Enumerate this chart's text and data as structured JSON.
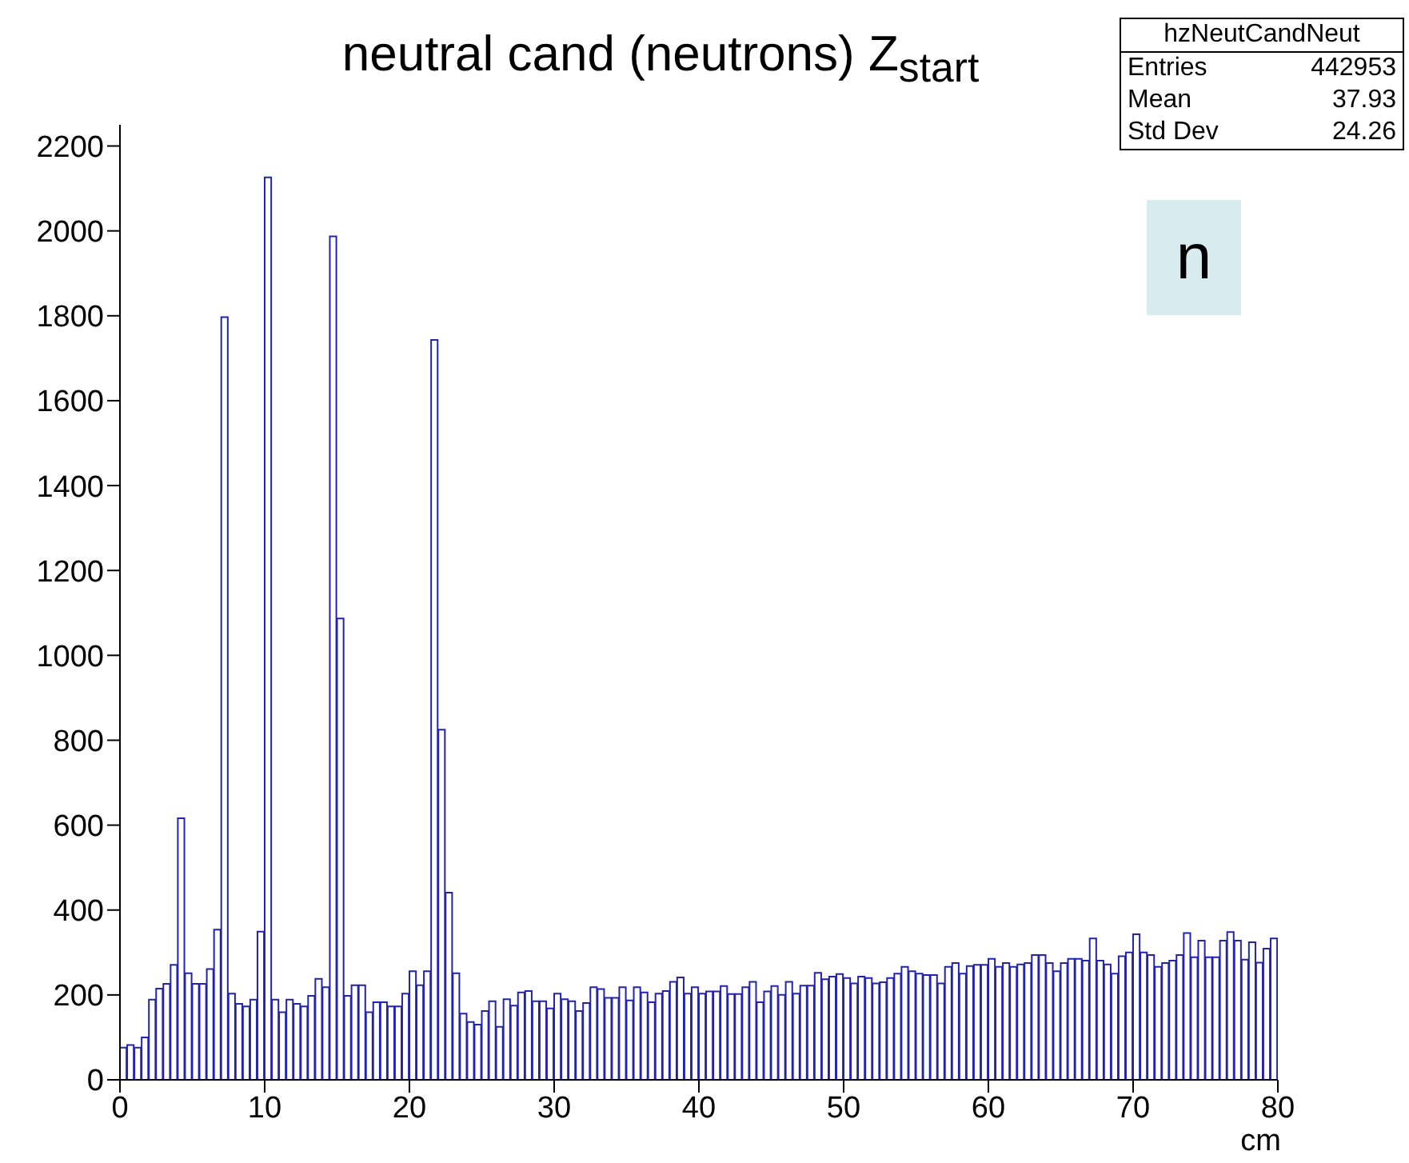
{
  "chart_data": {
    "type": "histogram",
    "title": "neutral cand (neutrons) Z$_{start}$",
    "xlabel": "cm",
    "color": "#2323b0",
    "bins": [
      0,
      0.5,
      1,
      1.5,
      2,
      2.5,
      3,
      3.5,
      4,
      4.5,
      5,
      5.5,
      6,
      6.5,
      7,
      7.5,
      8,
      8.5,
      9,
      9.5,
      10,
      10.5,
      11,
      11.5,
      12,
      12.5,
      13,
      13.5,
      14,
      14.5,
      15,
      15.5,
      16,
      16.5,
      17,
      17.5,
      18,
      18.5,
      19,
      19.5,
      20,
      20.5,
      21,
      21.5,
      22,
      22.5,
      23,
      23.5,
      24,
      24.5,
      25,
      25.5,
      26,
      26.5,
      27,
      27.5,
      28,
      28.5,
      29,
      29.5,
      30,
      30.5,
      31,
      31.5,
      32,
      32.5,
      33,
      33.5,
      34,
      34.5,
      35,
      35.5,
      36,
      36.5,
      37,
      37.5,
      38,
      38.5,
      39,
      39.5,
      40,
      40.5,
      41,
      41.5,
      42,
      42.5,
      43,
      43.5,
      44,
      44.5,
      45,
      45.5,
      46,
      46.5,
      47,
      47.5,
      48,
      48.5,
      49,
      49.5,
      50,
      50.5,
      51,
      51.5,
      52,
      52.5,
      53,
      53.5,
      54,
      54.5,
      55,
      55.5,
      56,
      56.5,
      57,
      57.5,
      58,
      58.5,
      59,
      59.5,
      60,
      60.5,
      61,
      61.5,
      62,
      62.5,
      63,
      63.5,
      64,
      64.5,
      65,
      65.5,
      66,
      66.5,
      67,
      67.5,
      68,
      68.5,
      69,
      69.5,
      70,
      70.5,
      71,
      71.5,
      72,
      72.5,
      73,
      73.5,
      74,
      74.5,
      75,
      75.5,
      76,
      76.5,
      77,
      77.5,
      78,
      78.5,
      79,
      79.5,
      80
    ],
    "values": [
      76,
      82,
      76,
      100,
      189,
      215,
      226,
      271,
      616,
      251,
      226,
      226,
      261,
      354,
      1797,
      203,
      179,
      173,
      189,
      349,
      2126,
      189,
      159,
      189,
      179,
      173,
      198,
      238,
      218,
      1987,
      1087,
      198,
      223,
      223,
      159,
      183,
      183,
      173,
      173,
      203,
      256,
      223,
      256,
      1743,
      825,
      441,
      251,
      156,
      136,
      130,
      162,
      185,
      125,
      190,
      175,
      206,
      209,
      185,
      185,
      168,
      203,
      190,
      185,
      162,
      181,
      218,
      214,
      193,
      193,
      218,
      187,
      218,
      206,
      183,
      203,
      209,
      231,
      241,
      203,
      218,
      203,
      208,
      208,
      221,
      202,
      202,
      218,
      231,
      183,
      208,
      221,
      200,
      231,
      203,
      222,
      222,
      252,
      237,
      243,
      249,
      240,
      227,
      243,
      240,
      227,
      230,
      240,
      250,
      266,
      256,
      250,
      247,
      247,
      227,
      266,
      275,
      250,
      268,
      271,
      271,
      285,
      266,
      275,
      266,
      272,
      275,
      294,
      294,
      275,
      256,
      275,
      285,
      285,
      281,
      333,
      281,
      272,
      250,
      291,
      300,
      343,
      300,
      294,
      266,
      275,
      281,
      294,
      346,
      289,
      328,
      289,
      289,
      328,
      348,
      328,
      283,
      324,
      276,
      309,
      333
    ],
    "xlim": [
      0,
      80
    ],
    "xticks": [
      0,
      10,
      20,
      30,
      40,
      50,
      60,
      70,
      80
    ],
    "ylim": [
      0,
      2250
    ],
    "yticks": [
      0,
      200,
      400,
      600,
      800,
      1000,
      1200,
      1400,
      1600,
      1800,
      2000,
      2200
    ],
    "grid": false,
    "legend": false,
    "annotations": [
      "hzNeutCandNeut",
      "Entries",
      "442953",
      "Mean",
      "37.93",
      "Std Dev",
      "24.26",
      "n"
    ]
  }
}
